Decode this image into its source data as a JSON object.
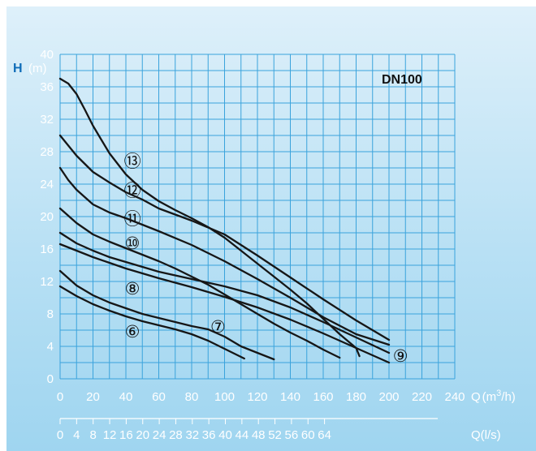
{
  "chart_data": {
    "type": "line",
    "model_label": "DN100",
    "y_axis": {
      "letter": "H",
      "unit": "(m)",
      "range": [
        0,
        40
      ],
      "ticks": [
        0,
        4,
        8,
        12,
        16,
        20,
        24,
        28,
        32,
        36,
        40
      ],
      "tick_labels": [
        "0",
        "4",
        "8",
        "12",
        "16",
        "20",
        "24",
        "28",
        "32",
        "36",
        "40"
      ]
    },
    "x_axis_primary": {
      "range": [
        0,
        240
      ],
      "ticks": [
        0,
        20,
        40,
        60,
        80,
        100,
        120,
        140,
        160,
        180,
        200,
        220,
        240
      ],
      "tick_labels": [
        "0",
        "20",
        "40",
        "60",
        "80",
        "100",
        "120",
        "140",
        "160",
        "180",
        "200",
        "220",
        "240"
      ],
      "unit_prefix": "Q",
      "unit_main": "(m",
      "unit_sup": "3",
      "unit_end": "/h)"
    },
    "x_axis_secondary": {
      "tick_labels": [
        "0",
        "4",
        "8",
        "12",
        "16",
        "20",
        "24",
        "28",
        "32",
        "36",
        "40",
        "44",
        "48",
        "52",
        "56",
        "60",
        "64"
      ],
      "unit": "Q(l/s)"
    },
    "grid": {
      "x_step": 10,
      "y_step": 2
    },
    "series": [
      {
        "name": "⑬",
        "label_at": [
          44,
          26.8
        ],
        "x": [
          0,
          5,
          10,
          15,
          20,
          25,
          30,
          40,
          50,
          60,
          70,
          80,
          90,
          100,
          110,
          120,
          130,
          140,
          150,
          160,
          170,
          180,
          182
        ],
        "y": [
          37,
          36.4,
          35.1,
          33.2,
          31.2,
          29.5,
          27.8,
          25.2,
          23.3,
          21.9,
          20.8,
          19.8,
          18.7,
          17.4,
          15.8,
          14.2,
          12.6,
          11,
          9.3,
          7.4,
          5.5,
          3.8,
          2.8
        ]
      },
      {
        "name": "⑫",
        "label_at": [
          44,
          23.2
        ],
        "x": [
          0,
          10,
          20,
          30,
          40,
          50,
          60,
          80,
          100,
          120,
          140,
          160,
          180,
          200
        ],
        "y": [
          30,
          27.5,
          25.5,
          24.2,
          23,
          22.1,
          21,
          19.5,
          17.8,
          15.2,
          12.5,
          9.8,
          7.2,
          4.8
        ]
      },
      {
        "name": "⑪",
        "label_at": [
          44,
          19.7
        ],
        "x": [
          0,
          5,
          10,
          20,
          30,
          40,
          50,
          60,
          80,
          100,
          120,
          140,
          160,
          180,
          200
        ],
        "y": [
          26,
          24.5,
          23.3,
          21.5,
          20.5,
          19.8,
          19,
          18.2,
          16.5,
          14.5,
          12.3,
          10,
          7.6,
          5.5,
          4.2
        ]
      },
      {
        "name": "⑩",
        "label_at": [
          44,
          16.7
        ],
        "x": [
          0,
          10,
          20,
          30,
          40,
          50,
          60,
          70,
          80,
          90,
          100,
          110,
          120,
          130,
          140,
          150,
          160,
          170
        ],
        "y": [
          21,
          19.2,
          17.8,
          16.9,
          16.1,
          15.3,
          14.5,
          13.6,
          12.6,
          11.6,
          10.4,
          9.2,
          8,
          6.8,
          5.7,
          4.7,
          3.6,
          2.6
        ]
      },
      {
        "name": "⑨",
        "label_at": [
          207,
          2.8
        ],
        "x": [
          0,
          10,
          20,
          30,
          40,
          50,
          60,
          80,
          100,
          120,
          140,
          160,
          180,
          200
        ],
        "y": [
          18,
          16.7,
          15.8,
          15,
          14.4,
          13.8,
          13.2,
          12.3,
          11.4,
          10.3,
          8.8,
          7,
          5.1,
          3.2
        ]
      },
      {
        "name": "⑧",
        "label_at": [
          44,
          11.1
        ],
        "x": [
          0,
          10,
          20,
          30,
          40,
          50,
          60,
          80,
          100,
          120,
          140,
          160,
          180,
          200
        ],
        "y": [
          16.6,
          15.8,
          15,
          14.3,
          13.6,
          13,
          12.4,
          11.3,
          10.1,
          8.8,
          7.3,
          5.6,
          3.8,
          2
        ]
      },
      {
        "name": "⑦",
        "label_at": [
          96,
          6.4
        ],
        "x": [
          0,
          10,
          20,
          30,
          40,
          50,
          60,
          70,
          80,
          90,
          100,
          110,
          120,
          130
        ],
        "y": [
          13.3,
          11.5,
          10.3,
          9.4,
          8.7,
          8,
          7.5,
          7,
          6.5,
          6.1,
          5.2,
          4,
          3.2,
          2.4
        ]
      },
      {
        "name": "⑥",
        "label_at": [
          44,
          5.8
        ],
        "x": [
          0,
          10,
          20,
          30,
          40,
          50,
          60,
          70,
          80,
          90,
          100,
          112
        ],
        "y": [
          11.4,
          10.2,
          9.2,
          8.4,
          7.7,
          7.1,
          6.6,
          6.1,
          5.5,
          4.7,
          3.7,
          2.5
        ]
      }
    ]
  }
}
